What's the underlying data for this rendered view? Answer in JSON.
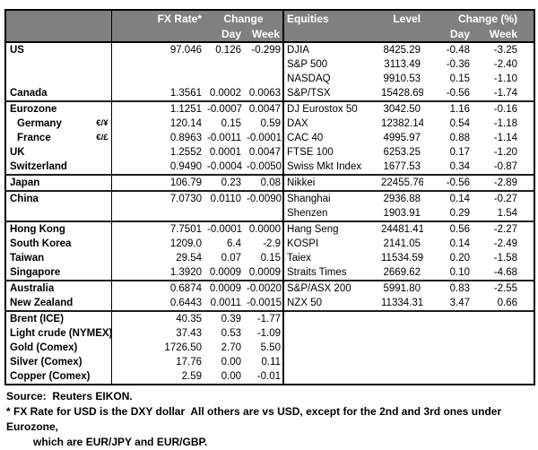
{
  "colors": {
    "header_bg": "#808080",
    "header_text": "#ffffff",
    "border": "#000000",
    "text": "#000000",
    "background": "#ffffff"
  },
  "headers": {
    "fx_rate": "FX Rate*",
    "fx_change": "Change",
    "fx_day": "Day",
    "fx_week": "Week",
    "equities": "Equities",
    "level": "Level",
    "eq_change": "Change (%)",
    "eq_day": "Day",
    "eq_week": "Week"
  },
  "table": {
    "rows": [
      {
        "name": "US",
        "pair": "",
        "indent": false,
        "group_top": false,
        "rate": "97.046",
        "fx_day": "0.126",
        "fx_week": "-0.299",
        "eq": "DJIA",
        "level": "8425.29",
        "eq_day": "-0.48",
        "eq_week": "-3.25"
      },
      {
        "name": "",
        "pair": "",
        "indent": false,
        "group_top": false,
        "rate": "",
        "fx_day": "",
        "fx_week": "",
        "eq": "S&P 500",
        "level": "3113.49",
        "eq_day": "-0.36",
        "eq_week": "-2.40"
      },
      {
        "name": "",
        "pair": "",
        "indent": false,
        "group_top": false,
        "rate": "",
        "fx_day": "",
        "fx_week": "",
        "eq": "NASDAQ",
        "level": "9910.53",
        "eq_day": "0.15",
        "eq_week": "-1.10"
      },
      {
        "name": "Canada",
        "pair": "",
        "indent": false,
        "group_top": false,
        "rate": "1.3561",
        "fx_day": "0.0002",
        "fx_week": "0.0063",
        "eq": "S&P/TSX",
        "level": "15428.69",
        "eq_day": "-0.56",
        "eq_week": "-1.74"
      },
      {
        "name": "Eurozone",
        "pair": "",
        "indent": false,
        "group_top": true,
        "rate": "1.1251",
        "fx_day": "-0.0007",
        "fx_week": "0.0047",
        "eq": "DJ Eurostox 50",
        "level": "3042.50",
        "eq_day": "1.16",
        "eq_week": "-0.16"
      },
      {
        "name": "Germany",
        "pair": "€/¥",
        "indent": true,
        "group_top": false,
        "rate": "120.14",
        "fx_day": "0.15",
        "fx_week": "0.59",
        "eq": "DAX",
        "level": "12382.14",
        "eq_day": "0.54",
        "eq_week": "-1.18"
      },
      {
        "name": "France",
        "pair": "€/£",
        "indent": true,
        "group_top": false,
        "rate": "0.8963",
        "fx_day": "-0.0011",
        "fx_week": "-0.0001",
        "eq": "CAC 40",
        "level": "4995.97",
        "eq_day": "0.88",
        "eq_week": "-1.14"
      },
      {
        "name": "UK",
        "pair": "",
        "indent": false,
        "group_top": false,
        "rate": "1.2552",
        "fx_day": "0.0001",
        "fx_week": "0.0047",
        "eq": "FTSE 100",
        "level": "6253.25",
        "eq_day": "0.17",
        "eq_week": "-1.20"
      },
      {
        "name": "Switzerland",
        "pair": "",
        "indent": false,
        "group_top": false,
        "rate": "0.9490",
        "fx_day": "-0.0004",
        "fx_week": "-0.0050",
        "eq": "Swiss Mkt Index",
        "level": "1677.53",
        "eq_day": "0.34",
        "eq_week": "-0.87"
      },
      {
        "name": "Japan",
        "pair": "",
        "indent": false,
        "group_top": true,
        "rate": "106.79",
        "fx_day": "0.23",
        "fx_week": "0.08",
        "eq": "Nikkei",
        "level": "22455.76",
        "eq_day": "-0.56",
        "eq_week": "-2.89"
      },
      {
        "name": "China",
        "pair": "",
        "indent": false,
        "group_top": true,
        "rate": "7.0730",
        "fx_day": "0.0110",
        "fx_week": "-0.0090",
        "eq": "Shanghai",
        "level": "2936.88",
        "eq_day": "0.14",
        "eq_week": "-0.27"
      },
      {
        "name": "",
        "pair": "",
        "indent": false,
        "group_top": false,
        "rate": "",
        "fx_day": "",
        "fx_week": "",
        "eq": "Shenzen",
        "level": "1903.91",
        "eq_day": "0.29",
        "eq_week": "1.54"
      },
      {
        "name": "Hong Kong",
        "pair": "",
        "indent": false,
        "group_top": true,
        "rate": "7.7501",
        "fx_day": "-0.0001",
        "fx_week": "0.0000",
        "eq": "Hang Seng",
        "level": "24481.41",
        "eq_day": "0.56",
        "eq_week": "-2.27"
      },
      {
        "name": "South Korea",
        "pair": "",
        "indent": false,
        "group_top": false,
        "rate": "1209.0",
        "fx_day": "6.4",
        "fx_week": "-2.9",
        "eq": "KOSPI",
        "level": "2141.05",
        "eq_day": "0.14",
        "eq_week": "-2.49"
      },
      {
        "name": "Taiwan",
        "pair": "",
        "indent": false,
        "group_top": false,
        "rate": "29.54",
        "fx_day": "0.07",
        "fx_week": "0.15",
        "eq": "Taiex",
        "level": "11534.59",
        "eq_day": "0.20",
        "eq_week": "-1.58"
      },
      {
        "name": "Singapore",
        "pair": "",
        "indent": false,
        "group_top": false,
        "rate": "1.3920",
        "fx_day": "0.0009",
        "fx_week": "0.0009",
        "eq": "Straits Times",
        "level": "2669.62",
        "eq_day": "0.10",
        "eq_week": "-4.68"
      },
      {
        "name": "Australia",
        "pair": "",
        "indent": false,
        "group_top": true,
        "rate": "0.6874",
        "fx_day": "0.0009",
        "fx_week": "-0.0020",
        "eq": "S&P/ASX  200",
        "level": "5991.80",
        "eq_day": "0.83",
        "eq_week": "-2.55"
      },
      {
        "name": "New Zealand",
        "pair": "",
        "indent": false,
        "group_top": false,
        "rate": "0.6443",
        "fx_day": "0.0011",
        "fx_week": "-0.0015",
        "eq": "NZX 50",
        "level": "11334.31",
        "eq_day": "3.47",
        "eq_week": "0.66"
      },
      {
        "name": "Brent (ICE)",
        "pair": "",
        "indent": false,
        "group_top": true,
        "rate": "40.35",
        "fx_day": "0.39",
        "fx_week": "-1.77",
        "eq": "",
        "level": "",
        "eq_day": "",
        "eq_week": ""
      },
      {
        "name": "Light crude (NYMEX)",
        "pair": "",
        "indent": false,
        "group_top": false,
        "rate": "37.43",
        "fx_day": "0.53",
        "fx_week": "-1.09",
        "eq": "",
        "level": "",
        "eq_day": "",
        "eq_week": ""
      },
      {
        "name": "Gold (Comex)",
        "pair": "",
        "indent": false,
        "group_top": false,
        "rate": "1726.50",
        "fx_day": "2.70",
        "fx_week": "5.50",
        "eq": "",
        "level": "",
        "eq_day": "",
        "eq_week": ""
      },
      {
        "name": "Silver (Comex)",
        "pair": "",
        "indent": false,
        "group_top": false,
        "rate": "17.76",
        "fx_day": "0.00",
        "fx_week": "0.11",
        "eq": "",
        "level": "",
        "eq_day": "",
        "eq_week": ""
      },
      {
        "name": "Copper (Comex)",
        "pair": "",
        "indent": false,
        "group_top": false,
        "rate": "2.59",
        "fx_day": "0.00",
        "fx_week": "-0.01",
        "eq": "",
        "level": "",
        "eq_day": "",
        "eq_week": ""
      }
    ]
  },
  "footer": {
    "source": "Source:  Reuters EIKON.",
    "note1": "* FX Rate for USD is the DXY dollar  All others are vs USD, except for the 2nd and 3rd ones under Eurozone,",
    "note2": "which are EUR/JPY and EUR/GBP."
  }
}
